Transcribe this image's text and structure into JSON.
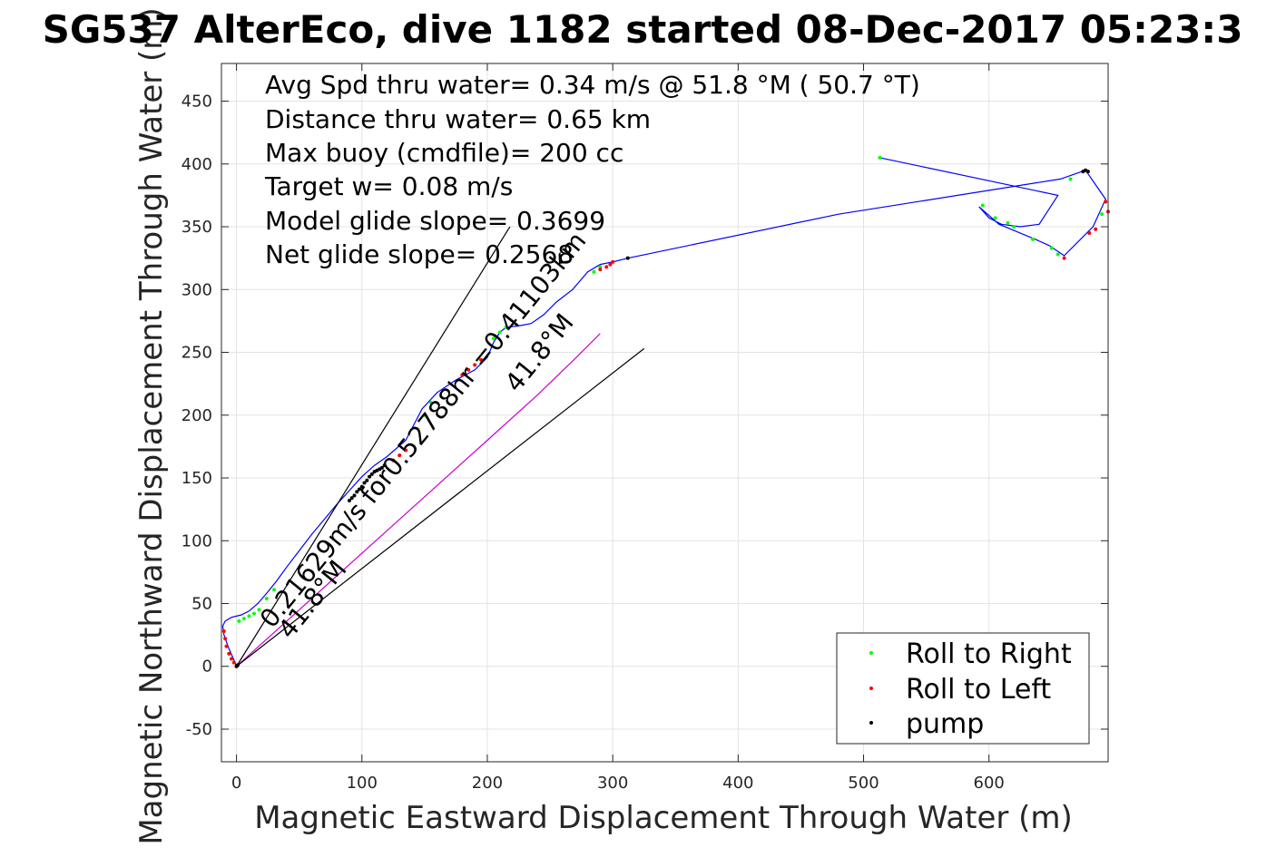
{
  "chart_data": {
    "type": "line",
    "title": "SG537 AlterEco, dive 1182 started 08-Dec-2017 05:23:3",
    "xlabel": "Magnetic Eastward Displacement Through Water (m)",
    "ylabel": "Magnetic Northward Displacement Through Water (m)",
    "xlim": [
      -12,
      695
    ],
    "ylim": [
      -76,
      480
    ],
    "x_ticks": [
      0,
      100,
      200,
      300,
      400,
      500,
      600
    ],
    "x_tick_labels": [
      "0",
      "100",
      "200",
      "300",
      "400",
      "500",
      "600"
    ],
    "y_ticks": [
      -50,
      0,
      50,
      100,
      150,
      200,
      250,
      300,
      350,
      400,
      450
    ],
    "y_tick_labels": [
      "-50",
      "0",
      "50",
      "100",
      "150",
      "200",
      "250",
      "300",
      "350",
      "400",
      "450"
    ],
    "grid": true,
    "legend_position": "bottom-right",
    "info_lines": [
      "Avg Spd thru water=  0.34 m/s @  51.8 °M ( 50.7 °T)",
      "Distance thru water=  0.65 km",
      "Max buoy (cmdfile)= 200 cc",
      "Target w= 0.08 m/s",
      "Model glide slope= 0.3699",
      "Net glide slope= 0.2568"
    ],
    "rotated_labels": [
      "0.21629m/s for0.52788hr =0.41103km",
      "41.8°M",
      "41.8°M"
    ],
    "series": [
      {
        "name": "track",
        "kind": "line",
        "color": "#0000ff",
        "x": [
          0,
          -2,
          -6,
          -10,
          -11,
          -9,
          -4,
          4,
          10,
          17,
          24,
          32,
          40,
          50,
          60,
          70,
          80,
          90,
          100,
          110,
          120,
          135,
          148,
          160,
          175,
          190,
          200,
          205,
          210,
          215,
          225,
          235,
          245,
          255,
          268,
          280,
          290,
          300,
          312,
          480,
          657,
          677,
          693,
          683,
          660,
          648,
          637,
          620,
          608,
          592,
          600,
          610,
          625,
          640,
          655,
          513
        ],
        "y": [
          0,
          5,
          14,
          25,
          32,
          36,
          39,
          41,
          44,
          50,
          58,
          68,
          79,
          92,
          105,
          117,
          129,
          140,
          151,
          160,
          167,
          180,
          205,
          218,
          228,
          236,
          246,
          258,
          266,
          270,
          271,
          273,
          280,
          290,
          300,
          314,
          320,
          322,
          325,
          360,
          388,
          395,
          372,
          350,
          327,
          335,
          340,
          347,
          352,
          366,
          357,
          352,
          350,
          352,
          375,
          405
        ]
      },
      {
        "name": "heading line (magenta)",
        "kind": "line",
        "color": "#cc00cc",
        "x": [
          0,
          40,
          80,
          120,
          160,
          200,
          240,
          270,
          290
        ],
        "y": [
          0,
          36,
          72,
          108,
          144,
          180,
          216,
          245,
          265
        ]
      },
      {
        "name": "model glide wedge",
        "kind": "wedge",
        "color": "#000000",
        "x": [
          0,
          218,
          0,
          325
        ],
        "y": [
          0,
          350,
          0,
          253
        ]
      },
      {
        "name": "Roll to Right",
        "kind": "points",
        "color": "#00ff00",
        "x": [
          2,
          6,
          10,
          14,
          18,
          24,
          30,
          150,
          155,
          205,
          210,
          215,
          285,
          290,
          595,
          605,
          615,
          620,
          635,
          650,
          655,
          665,
          513,
          690
        ],
        "y": [
          36,
          38,
          40,
          42,
          45,
          54,
          61,
          200,
          210,
          261,
          266,
          270,
          314,
          318,
          367,
          357,
          353,
          350,
          340,
          333,
          328,
          388,
          405,
          360
        ]
      },
      {
        "name": "Roll to Left",
        "kind": "points",
        "color": "#ff0000",
        "x": [
          -10,
          -9,
          -8,
          -6,
          -4,
          -2,
          0,
          125,
          130,
          135,
          180,
          185,
          190,
          195,
          290,
          295,
          298,
          300,
          660,
          680,
          685,
          693,
          695
        ],
        "y": [
          28,
          22,
          16,
          10,
          6,
          3,
          0,
          164,
          168,
          172,
          232,
          236,
          240,
          244,
          316,
          318,
          320,
          322,
          325,
          345,
          348,
          370,
          362
        ]
      },
      {
        "name": "pump",
        "kind": "points",
        "color": "#000000",
        "x": [
          0,
          1,
          90,
          92,
          94,
          96,
          98,
          100,
          102,
          104,
          106,
          108,
          110,
          112,
          114,
          116,
          118,
          312,
          675,
          677,
          679
        ],
        "y": [
          0,
          1,
          132,
          134,
          136,
          139,
          141,
          143,
          146,
          148,
          151,
          153,
          155,
          156,
          157,
          158,
          160,
          325,
          394,
          395,
          394
        ]
      }
    ],
    "legend": [
      {
        "label": "Roll to Right",
        "color": "#00ff00"
      },
      {
        "label": "Roll to Left",
        "color": "#ff0000"
      },
      {
        "label": "pump",
        "color": "#000000"
      }
    ]
  }
}
